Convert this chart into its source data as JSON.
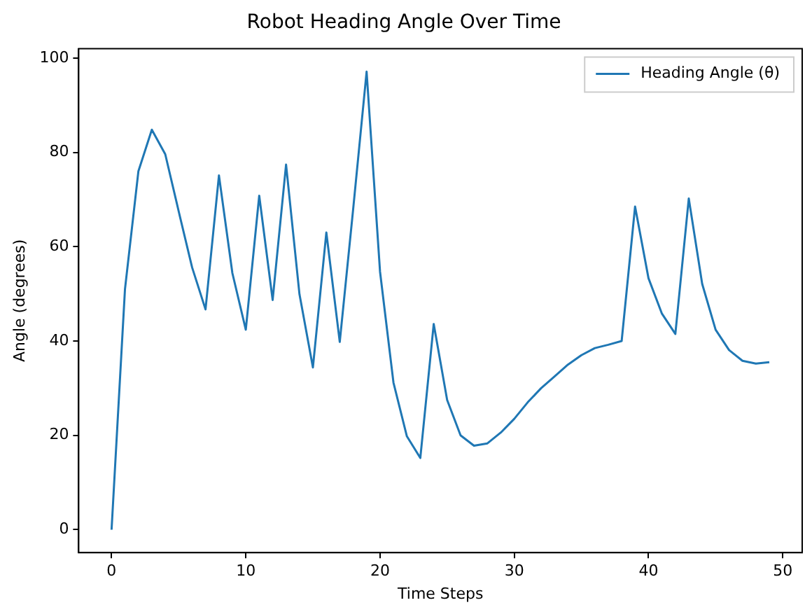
{
  "chart_data": {
    "type": "line",
    "title": "Robot Heading Angle Over Time",
    "xlabel": "Time Steps",
    "ylabel": "Angle (degrees)",
    "x": [
      0,
      1,
      2,
      3,
      4,
      5,
      6,
      7,
      8,
      9,
      10,
      11,
      12,
      13,
      14,
      15,
      16,
      17,
      18,
      19,
      20,
      21,
      22,
      23,
      24,
      25,
      26,
      27,
      28,
      29,
      30,
      31,
      32,
      33,
      34,
      35,
      36,
      37,
      38,
      39,
      40,
      41,
      42,
      43,
      44,
      45,
      46,
      47,
      48,
      49
    ],
    "series": [
      {
        "name": "Heading Angle (θ)",
        "color": "#1f77b4",
        "values": [
          0,
          51,
          76,
          84.8,
          79.6,
          67.5,
          55.6,
          46.7,
          75.1,
          54.4,
          42.4,
          70.8,
          48.7,
          77.4,
          49.9,
          34.4,
          63,
          39.8,
          68,
          97.1,
          54.7,
          31.2,
          19.8,
          15.2,
          43.6,
          27.5,
          20,
          17.8,
          18.3,
          20.6,
          23.5,
          27,
          30,
          32.5,
          35,
          37,
          38.5,
          39.2,
          40,
          68.5,
          53.3,
          45.8,
          41.5,
          70.2,
          52.1,
          42.4,
          38.1,
          35.8,
          35.2,
          35.5
        ]
      }
    ],
    "xlim": [
      -2.45,
      51.45
    ],
    "ylim": [
      -4.86,
      101.96
    ],
    "xticks": [
      0,
      10,
      20,
      30,
      40,
      50
    ],
    "yticks": [
      0,
      20,
      40,
      60,
      80,
      100
    ],
    "grid": false,
    "legend": "top right",
    "marker": "none",
    "line_style": "solid"
  }
}
